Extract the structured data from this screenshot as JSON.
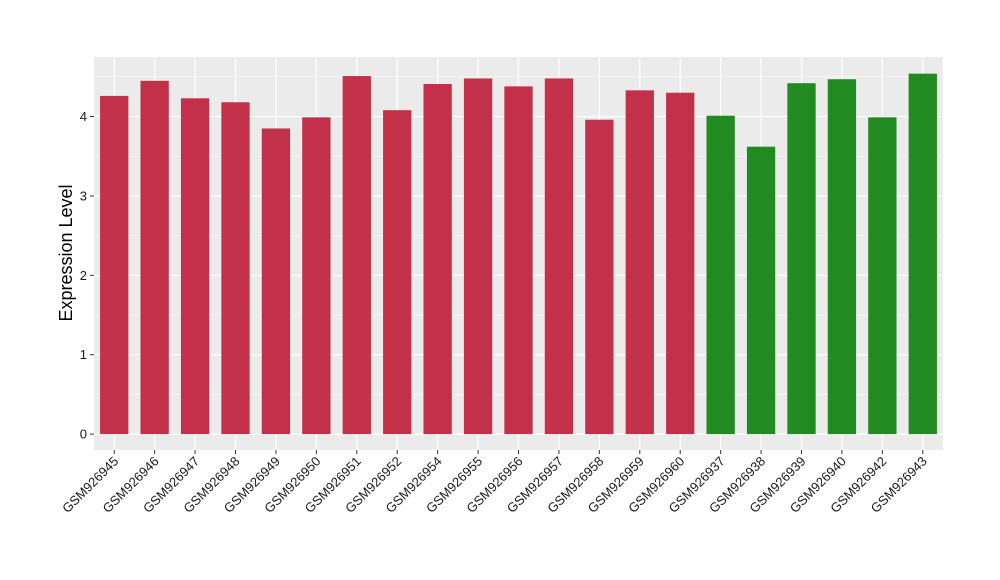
{
  "chart_data": {
    "type": "bar",
    "title": "",
    "xlabel": "",
    "ylabel": "Expression Level",
    "ylim": [
      -0.2,
      4.75
    ],
    "yticks": [
      0,
      1,
      2,
      3,
      4
    ],
    "grid": true,
    "legend": "none",
    "categories": [
      "GSM926945",
      "GSM926946",
      "GSM926947",
      "GSM926948",
      "GSM926949",
      "GSM926950",
      "GSM926951",
      "GSM926952",
      "GSM926954",
      "GSM926955",
      "GSM926956",
      "GSM926957",
      "GSM926958",
      "GSM926959",
      "GSM926960",
      "GSM926937",
      "GSM926938",
      "GSM926939",
      "GSM926940",
      "GSM926942",
      "GSM926943"
    ],
    "values": [
      4.26,
      4.45,
      4.23,
      4.18,
      3.85,
      3.99,
      4.51,
      4.08,
      4.41,
      4.48,
      4.38,
      4.48,
      3.96,
      4.33,
      4.3,
      4.01,
      3.62,
      4.42,
      4.47,
      3.99,
      4.54
    ],
    "groups": [
      "a",
      "a",
      "a",
      "a",
      "a",
      "a",
      "a",
      "a",
      "a",
      "a",
      "a",
      "a",
      "a",
      "a",
      "a",
      "b",
      "b",
      "b",
      "b",
      "b",
      "b"
    ],
    "group_colors": {
      "a": "#c3304a",
      "b": "#218b21"
    },
    "panel_color": "#ebebeb",
    "grid_color": "#ffffff"
  }
}
